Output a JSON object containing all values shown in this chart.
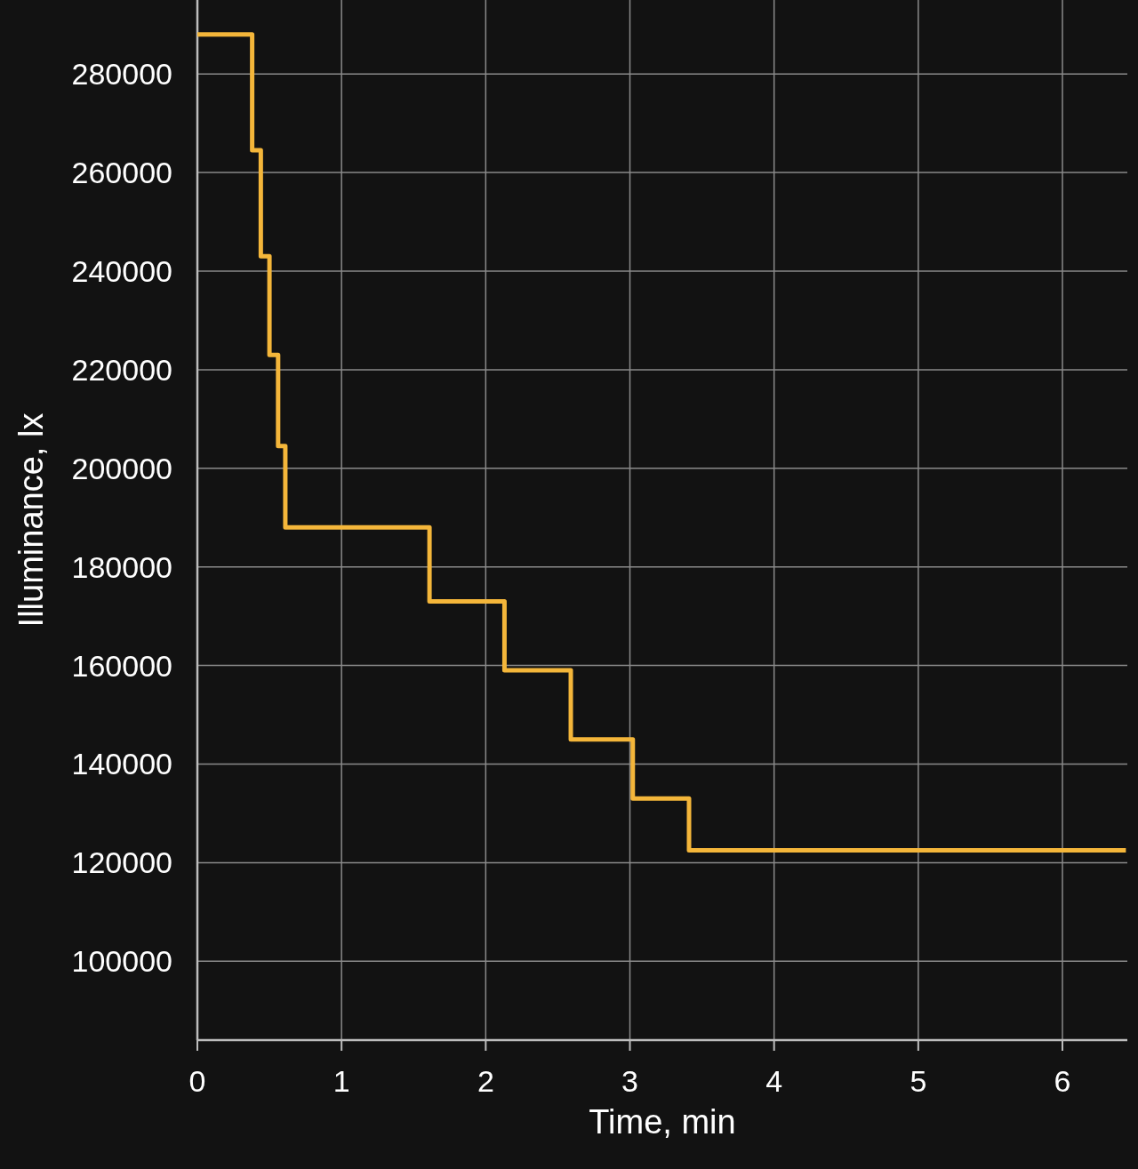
{
  "chart_data": {
    "type": "step",
    "xlabel": "Time, min",
    "ylabel": "Illuminance, lx",
    "x": [
      0,
      0.38,
      0.44,
      0.5,
      0.56,
      0.61,
      1.61,
      2.13,
      2.59,
      3.02,
      3.41,
      6.44
    ],
    "series": [
      {
        "color": "#f4b63a",
        "values": [
          288000,
          264500,
          243000,
          223000,
          204500,
          188000,
          173000,
          159000,
          145000,
          133000,
          122500,
          122500
        ]
      }
    ],
    "xlim": [
      0,
      6.45
    ],
    "xticks": [
      0,
      1,
      2,
      3,
      4,
      5,
      6
    ],
    "ylim": [
      84000,
      295000
    ],
    "yticks": [
      100000,
      120000,
      140000,
      160000,
      180000,
      200000,
      220000,
      240000,
      260000,
      280000
    ],
    "grid": true
  }
}
